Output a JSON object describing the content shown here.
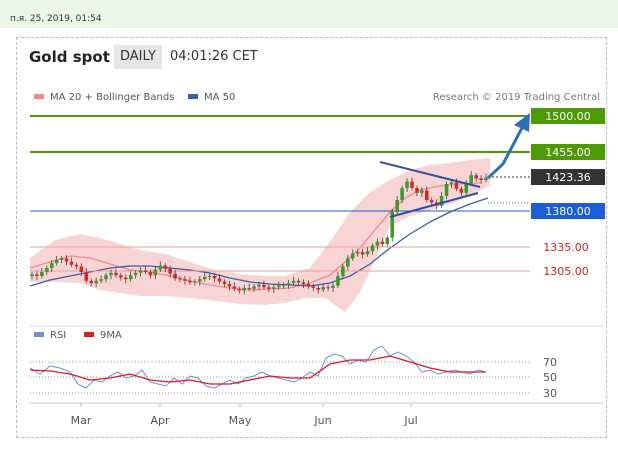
{
  "topbar": {
    "timestamp": "п.я. 25, 2019, 01:54"
  },
  "header": {
    "title": "Gold spot",
    "timeframe": "DAILY",
    "time": "04:01:26 CET"
  },
  "legend": {
    "ma20": "MA 20 + Bollinger Bands",
    "ma50": "MA 50",
    "credit": "Research © 2019 Trading Central"
  },
  "rsi_legend": {
    "rsi": "RSI",
    "ma9": "9MA"
  },
  "colors": {
    "resistance": "#4e9a06",
    "support": "#1a5fd6",
    "pivot": "#333333",
    "mild_support": "#e0201e",
    "bollinger_fill": "#f8cfcf",
    "ma20": "#ef8a8a",
    "ma50": "#3a5fa8",
    "arrow": "#2f6fb6",
    "candle_up": "#3c9a2c",
    "candle_down": "#d62a2a"
  },
  "chart_data": [
    {
      "type": "candlestick",
      "title": "Gold spot",
      "x_ticks": [
        "Mar",
        "Apr",
        "May",
        "Jun",
        "Jul"
      ],
      "price_levels": [
        {
          "value": 1500.0,
          "label": "1500.00",
          "kind": "resistance"
        },
        {
          "value": 1455.0,
          "label": "1455.00",
          "kind": "resistance"
        },
        {
          "value": 1423.36,
          "label": "1423.36",
          "kind": "last"
        },
        {
          "value": 1380.0,
          "label": "1380.00",
          "kind": "support"
        },
        {
          "value": 1335.0,
          "label": "1335.00",
          "kind": "mild_support"
        },
        {
          "value": 1305.0,
          "label": "1305.00",
          "kind": "mild_support"
        }
      ],
      "close_approx": [
        1302,
        1300,
        1305,
        1310,
        1316,
        1320,
        1322,
        1318,
        1314,
        1312,
        1305,
        1294,
        1291,
        1294,
        1296,
        1301,
        1304,
        1301,
        1298,
        1296,
        1301,
        1304,
        1307,
        1305,
        1301,
        1308,
        1313,
        1309,
        1303,
        1297,
        1296,
        1294,
        1292,
        1293,
        1296,
        1299,
        1300,
        1297,
        1293,
        1290,
        1287,
        1284,
        1282,
        1285,
        1284,
        1287,
        1289,
        1286,
        1284,
        1286,
        1288,
        1289,
        1291,
        1294,
        1292,
        1290,
        1287,
        1285,
        1283,
        1286,
        1285,
        1288,
        1300,
        1312,
        1322,
        1328,
        1330,
        1327,
        1331,
        1338,
        1343,
        1340,
        1348,
        1380,
        1395,
        1410,
        1418,
        1410,
        1404,
        1407,
        1395,
        1392,
        1388,
        1400,
        1415,
        1417,
        1409,
        1404,
        1416,
        1426,
        1422,
        1420,
        1423
      ],
      "ma20_approx": [
        1300,
        1302,
        1305,
        1306,
        1306,
        1305,
        1303,
        1301,
        1300,
        1300,
        1300,
        1301,
        1301,
        1302,
        1303,
        1302,
        1301,
        1299,
        1297,
        1295,
        1294,
        1293,
        1292,
        1291,
        1290,
        1289,
        1288,
        1287,
        1287,
        1289,
        1294,
        1302,
        1312,
        1322,
        1333,
        1347,
        1362,
        1376,
        1385,
        1394,
        1400,
        1404,
        1409,
        1414,
        1418,
        1421
      ],
      "ma50_approx": [
        1288,
        1291,
        1294,
        1297,
        1299,
        1300,
        1300,
        1299,
        1297,
        1295,
        1294,
        1293,
        1292,
        1291,
        1290,
        1289,
        1288,
        1289,
        1291,
        1293,
        1296,
        1299,
        1303,
        1309,
        1316,
        1325,
        1335,
        1345,
        1356,
        1366,
        1375,
        1382,
        1386
      ],
      "rsi": {
        "ylim": [
          20,
          80
        ],
        "levels": [
          70,
          50,
          30
        ]
      }
    }
  ]
}
